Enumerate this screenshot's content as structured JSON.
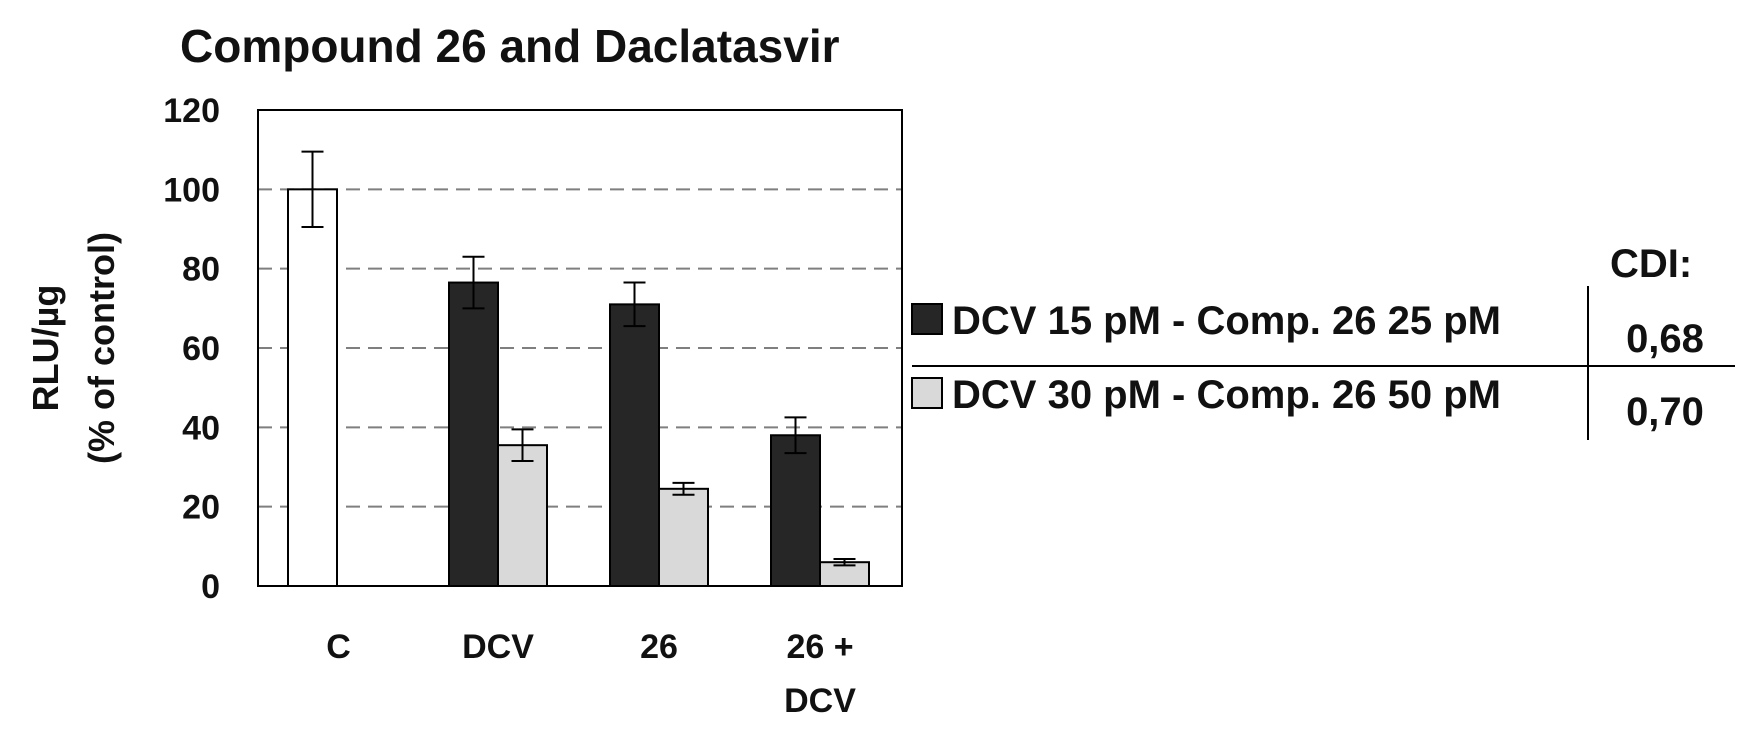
{
  "chart_data": {
    "type": "bar",
    "title": "Compound 26 and Daclatasvir",
    "ylabel": [
      "RLU/µg",
      "(% of control)"
    ],
    "xlabel": "",
    "ylim": [
      0,
      120
    ],
    "yticks": [
      0,
      20,
      40,
      60,
      80,
      100,
      120
    ],
    "categories": [
      [
        "C"
      ],
      [
        "DCV"
      ],
      [
        "26"
      ],
      [
        "26 +",
        "DCV"
      ]
    ],
    "series": [
      {
        "name": "DCV 15 pM - Comp. 26 25 pM",
        "color": "#262626",
        "values": [
          100,
          76.5,
          71,
          38
        ],
        "errors": [
          9.5,
          6.5,
          5.5,
          4.5
        ]
      },
      {
        "name": "DCV 30 pM - Comp. 26 50 pM",
        "color": "#d9d9d9",
        "values": [
          null,
          35.5,
          24.5,
          6
        ],
        "errors": [
          null,
          4,
          1.5,
          0.8
        ]
      }
    ],
    "control_color": "#ffffff",
    "legend_position": "right",
    "grid": "dashed-horizontal"
  },
  "cdi": {
    "header": "CDI:",
    "values": [
      "0,68",
      "0,70"
    ]
  }
}
